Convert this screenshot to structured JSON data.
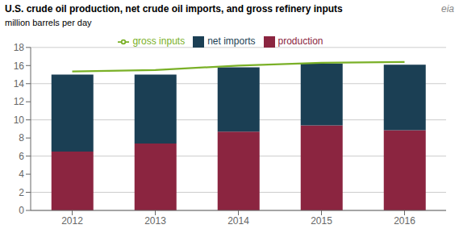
{
  "chart_data": {
    "type": "bar",
    "title": "U.S. crude oil production, net crude oil imports, and gross refinery inputs",
    "subtitle": "million barrels per day",
    "annotations": [
      "eia"
    ],
    "categories": [
      "2012",
      "2013",
      "2014",
      "2015",
      "2016"
    ],
    "series": [
      {
        "name": "production",
        "type": "bar",
        "color": "#8B2540",
        "values": [
          6.5,
          7.4,
          8.7,
          9.4,
          8.85
        ]
      },
      {
        "name": "net imports",
        "type": "bar",
        "color": "#1B3F54",
        "values": [
          8.5,
          7.6,
          7.1,
          6.8,
          7.25
        ]
      },
      {
        "name": "gross inputs",
        "type": "line",
        "color": "#7AB027",
        "values": [
          15.35,
          15.5,
          16.0,
          16.3,
          16.4
        ]
      }
    ],
    "stacked": true,
    "ylim": [
      0,
      18
    ],
    "yticks": [
      0,
      2,
      4,
      6,
      8,
      10,
      12,
      14,
      16,
      18
    ],
    "grid": true,
    "legend": "top"
  }
}
